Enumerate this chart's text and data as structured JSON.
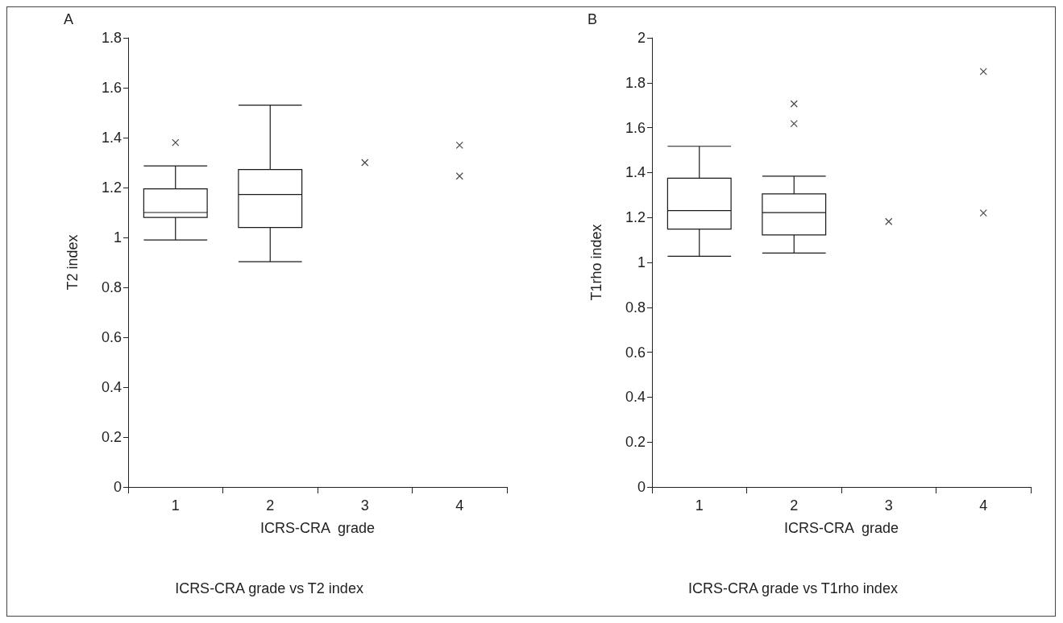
{
  "chart_data": [
    {
      "type": "box",
      "title": "ICRS-CRA grade vs T2 index",
      "annotations": [
        "A"
      ],
      "xlabel": "ICRS-CRA  grade",
      "ylabel": "T2 index",
      "categories": [
        "1",
        "2",
        "3",
        "4"
      ],
      "boxes": [
        {
          "low": 0.99,
          "q1": 1.08,
          "median": 1.1,
          "q3": 1.195,
          "high": 1.287,
          "outliers": [
            1.38
          ]
        },
        {
          "low": 0.903,
          "q1": 1.04,
          "median": 1.172,
          "q3": 1.272,
          "high": 1.53
        },
        null,
        null
      ],
      "series": [
        {
          "type": "scatter",
          "x": [
            "3",
            "4",
            "4"
          ],
          "values": [
            1.3,
            1.37,
            1.246
          ]
        }
      ],
      "ylim": [
        0,
        1.8
      ],
      "yticks": [
        0,
        0.2,
        0.4,
        0.6,
        0.8,
        1,
        1.2,
        1.4,
        1.6,
        1.8
      ],
      "grid": false,
      "marker": "cross",
      "color": "#1a1a1a"
    },
    {
      "type": "box",
      "title": "ICRS-CRA grade vs T1rho index",
      "annotations": [
        "B"
      ],
      "xlabel": "ICRS-CRA  grade",
      "ylabel": "T1rho index",
      "categories": [
        "1",
        "2",
        "3",
        "4"
      ],
      "boxes": [
        {
          "low": 1.027,
          "q1": 1.148,
          "median": 1.231,
          "q3": 1.375,
          "high": 1.517
        },
        {
          "low": 1.042,
          "q1": 1.122,
          "median": 1.222,
          "q3": 1.305,
          "high": 1.384,
          "outliers": [
            1.706,
            1.618
          ]
        },
        null,
        null
      ],
      "series": [
        {
          "type": "scatter",
          "x": [
            "3",
            "4",
            "4"
          ],
          "values": [
            1.182,
            1.85,
            1.22
          ]
        }
      ],
      "ylim": [
        0,
        2
      ],
      "yticks": [
        0,
        0.2,
        0.4,
        0.6,
        0.8,
        1,
        1.2,
        1.4,
        1.6,
        1.8,
        2
      ],
      "grid": false,
      "marker": "cross",
      "color": "#1a1a1a"
    }
  ]
}
